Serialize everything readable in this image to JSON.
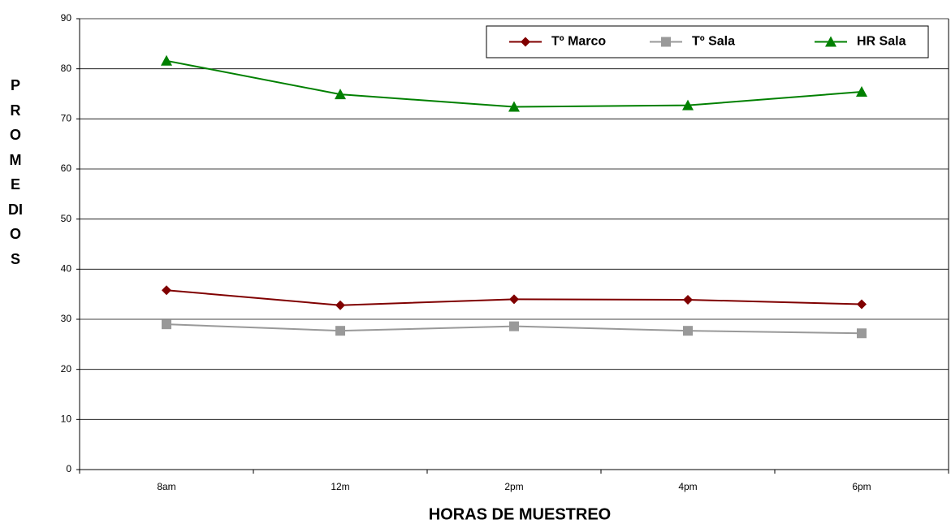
{
  "chart_data": {
    "type": "line",
    "x_label": "HORAS DE MUESTREO",
    "y_label": "PROMEDIOS",
    "categories": [
      "8am",
      "12m",
      "2pm",
      "4pm",
      "6pm"
    ],
    "series": [
      {
        "name": "Tº Marco",
        "color": "#800000",
        "marker": "diamond",
        "values": [
          35.8,
          32.8,
          34.0,
          33.9,
          33.0
        ]
      },
      {
        "name": "Tº Sala",
        "color": "#999999",
        "marker": "square",
        "values": [
          29.0,
          27.7,
          28.6,
          27.7,
          27.2
        ]
      },
      {
        "name": "HR Sala",
        "color": "#008000",
        "marker": "triangle",
        "values": [
          81.6,
          74.9,
          72.4,
          72.7,
          75.4
        ]
      }
    ],
    "ylim": [
      0,
      90
    ],
    "yticks": [
      0,
      10,
      20,
      30,
      40,
      50,
      60,
      70,
      80,
      90
    ],
    "grid": true,
    "legend": "upper right"
  }
}
